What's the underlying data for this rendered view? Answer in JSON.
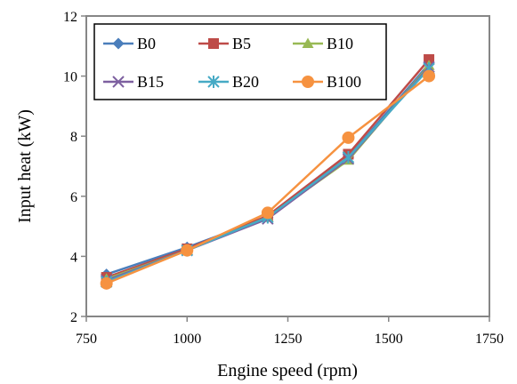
{
  "chart_data": {
    "type": "line",
    "title": "",
    "xlabel": "Engine speed (rpm)",
    "ylabel": "Input heat (kW)",
    "xlim": [
      750,
      1750
    ],
    "ylim": [
      2,
      12
    ],
    "x_ticks": [
      750,
      1000,
      1250,
      1500,
      1750
    ],
    "y_ticks": [
      2,
      4,
      6,
      8,
      10,
      12
    ],
    "grid": false,
    "legend_position": "top-left, inside plot, boxed, 3 columns",
    "x": [
      800,
      1000,
      1200,
      1400,
      1600
    ],
    "series": [
      {
        "name": "B0",
        "color": "#4a7ebb",
        "marker": "diamond",
        "values": [
          3.4,
          4.3,
          5.3,
          7.3,
          10.4
        ]
      },
      {
        "name": "B5",
        "color": "#be4b48",
        "marker": "square",
        "values": [
          3.3,
          4.25,
          5.35,
          7.4,
          10.55
        ]
      },
      {
        "name": "B10",
        "color": "#98b954",
        "marker": "triangle",
        "values": [
          3.25,
          4.2,
          5.3,
          7.2,
          10.35
        ]
      },
      {
        "name": "B15",
        "color": "#7d60a0",
        "marker": "x",
        "values": [
          3.2,
          4.2,
          5.25,
          7.25,
          10.3
        ]
      },
      {
        "name": "B20",
        "color": "#46aac5",
        "marker": "star",
        "values": [
          3.15,
          4.2,
          5.3,
          7.3,
          10.25
        ]
      },
      {
        "name": "B100",
        "color": "#f69240",
        "marker": "circle",
        "values": [
          3.1,
          4.2,
          5.45,
          7.95,
          10.0
        ]
      }
    ]
  }
}
